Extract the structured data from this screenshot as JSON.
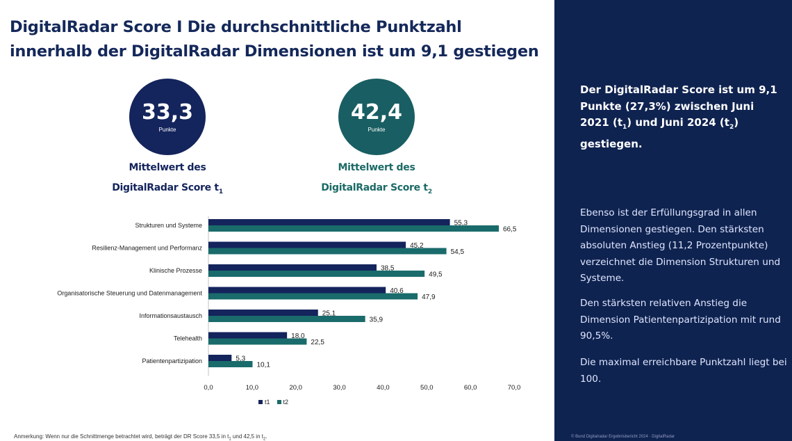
{
  "title": {
    "line1": "DigitalRadar Score I Die durchschnittliche Punktzahl",
    "line2": "innerhalb der DigitalRadar Dimensionen ist um 9,1 gestiegen"
  },
  "kpis": {
    "t1": {
      "value": "33,3",
      "unit": "Punkte",
      "caption_line1": "Mittelwert des",
      "caption_line2": "DigitalRadar Score t",
      "sub": "1",
      "color": "#14245c"
    },
    "t2": {
      "value": "42,4",
      "unit": "Punkte",
      "caption_line1": "Mittelwert des",
      "caption_line2": "DigitalRadar Score t",
      "sub": "2",
      "color": "#195e62"
    }
  },
  "chart_data": {
    "type": "bar",
    "orientation": "horizontal",
    "categories": [
      "Strukturen und Systeme",
      "Resilienz-Management und Performanz",
      "Klinische Prozesse",
      "Organisatorische Steuerung und Datenmanagement",
      "Informationsaustausch",
      "Telehealth",
      "Patientenpartizipation"
    ],
    "series": [
      {
        "name": "t1",
        "color": "#14245c",
        "values": [
          55.3,
          45.2,
          38.5,
          40.6,
          25.1,
          18.0,
          5.3
        ],
        "labels": [
          "55,3",
          "45,2",
          "38,5",
          "40,6",
          "25,1",
          "18,0",
          "5,3"
        ]
      },
      {
        "name": "t2",
        "color": "#1a6b6b",
        "values": [
          66.5,
          54.5,
          49.5,
          47.9,
          35.9,
          22.5,
          10.1
        ],
        "labels": [
          "66,5",
          "54,5",
          "49,5",
          "47,9",
          "35,9",
          "22,5",
          "10,1"
        ]
      }
    ],
    "xlim": [
      0,
      70
    ],
    "xticks": [
      0,
      10,
      20,
      30,
      40,
      50,
      60,
      70
    ],
    "xtick_labels": [
      "0,0",
      "10,0",
      "20,0",
      "30,0",
      "40,0",
      "50,0",
      "60,0",
      "70,0"
    ],
    "grid": false,
    "legend": "bottom"
  },
  "footnote": {
    "text": "Anmerkung: Wenn nur die Schnittmenge betrachtet wird, beträgt der DR Score 33,5 in t",
    "sub1": "1",
    "mid": " und 42,5 in t",
    "sub2": "2",
    "end": "."
  },
  "side_panel": {
    "headline": {
      "part1": "Der DigitalRadar Score ist um 9,1 Punkte (27,3%) zwischen Juni 2021 (t",
      "sub1": "1",
      "part2": ") und Juni 2024 (t",
      "sub2": "2",
      "part3": ") gestiegen."
    },
    "paragraphs": [
      "Ebenso ist der Erfüllungsgrad in allen Dimensionen gestiegen. Den stärksten absoluten Anstieg (11,2 Prozentpunkte) verzeichnet die Dimension Strukturen und Systeme.",
      "Den stärksten relativen Anstieg die Dimension Patientenpartizipation mit rund 90,5%.",
      "Die maximal erreichbare Punktzahl liegt bei 100."
    ],
    "footer": "© Bund Digitalradar Ergebnisbericht 2024 · DigitalRadar"
  },
  "colors": {
    "title": "#14285a",
    "panel_bg": "#0f2350"
  }
}
